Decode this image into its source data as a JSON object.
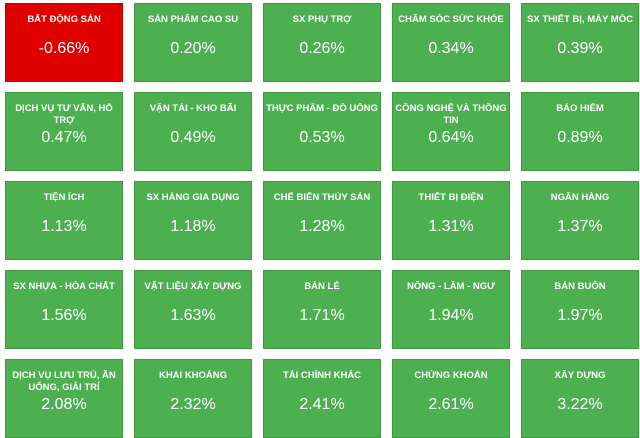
{
  "colors": {
    "positive": "#4caf50",
    "negative": "#e00000"
  },
  "sectors": [
    {
      "name": "BẤT ĐỘNG SẢN",
      "change": "-0.66%",
      "status": "negative"
    },
    {
      "name": "SẢN PHẨM CAO SU",
      "change": "0.20%",
      "status": "positive"
    },
    {
      "name": "SX PHỤ TRỢ",
      "change": "0.26%",
      "status": "positive"
    },
    {
      "name": "CHĂM SÓC SỨC KHỎE",
      "change": "0.34%",
      "status": "positive"
    },
    {
      "name": "SX THIẾT BỊ, MÁY MÓC",
      "change": "0.39%",
      "status": "positive"
    },
    {
      "name": "DỊCH VỤ TƯ VẤN, HỖ TRỢ",
      "change": "0.47%",
      "status": "positive"
    },
    {
      "name": "VẬN TẢI - KHO BÃI",
      "change": "0.49%",
      "status": "positive"
    },
    {
      "name": "THỰC PHẨM - ĐỒ UỐNG",
      "change": "0.53%",
      "status": "positive"
    },
    {
      "name": "CÔNG NGHỆ VÀ THÔNG TIN",
      "change": "0.64%",
      "status": "positive"
    },
    {
      "name": "BẢO HIỂM",
      "change": "0.89%",
      "status": "positive"
    },
    {
      "name": "TIỆN ÍCH",
      "change": "1.13%",
      "status": "positive"
    },
    {
      "name": "SX HÀNG GIA DỤNG",
      "change": "1.18%",
      "status": "positive"
    },
    {
      "name": "CHẾ BIẾN THỦY SẢN",
      "change": "1.28%",
      "status": "positive"
    },
    {
      "name": "THIẾT BỊ ĐIỆN",
      "change": "1.31%",
      "status": "positive"
    },
    {
      "name": "NGÂN HÀNG",
      "change": "1.37%",
      "status": "positive"
    },
    {
      "name": "SX NHỰA - HÓA CHẤT",
      "change": "1.56%",
      "status": "positive"
    },
    {
      "name": "VẬT LIỆU XÂY DỰNG",
      "change": "1.63%",
      "status": "positive"
    },
    {
      "name": "BÁN LẺ",
      "change": "1.71%",
      "status": "positive"
    },
    {
      "name": "NÔNG - LÂM - NGƯ",
      "change": "1.94%",
      "status": "positive"
    },
    {
      "name": "BÁN BUÔN",
      "change": "1.97%",
      "status": "positive"
    },
    {
      "name": "DỊCH VỤ LƯU TRÚ, ĂN UỐNG, GIẢI TRÍ",
      "change": "2.08%",
      "status": "positive"
    },
    {
      "name": "KHAI KHOÁNG",
      "change": "2.32%",
      "status": "positive"
    },
    {
      "name": "TÀI CHÍNH KHÁC",
      "change": "2.41%",
      "status": "positive"
    },
    {
      "name": "CHỨNG KHOÁN",
      "change": "2.61%",
      "status": "positive"
    },
    {
      "name": "XÂY DỰNG",
      "change": "3.22%",
      "status": "positive"
    }
  ]
}
